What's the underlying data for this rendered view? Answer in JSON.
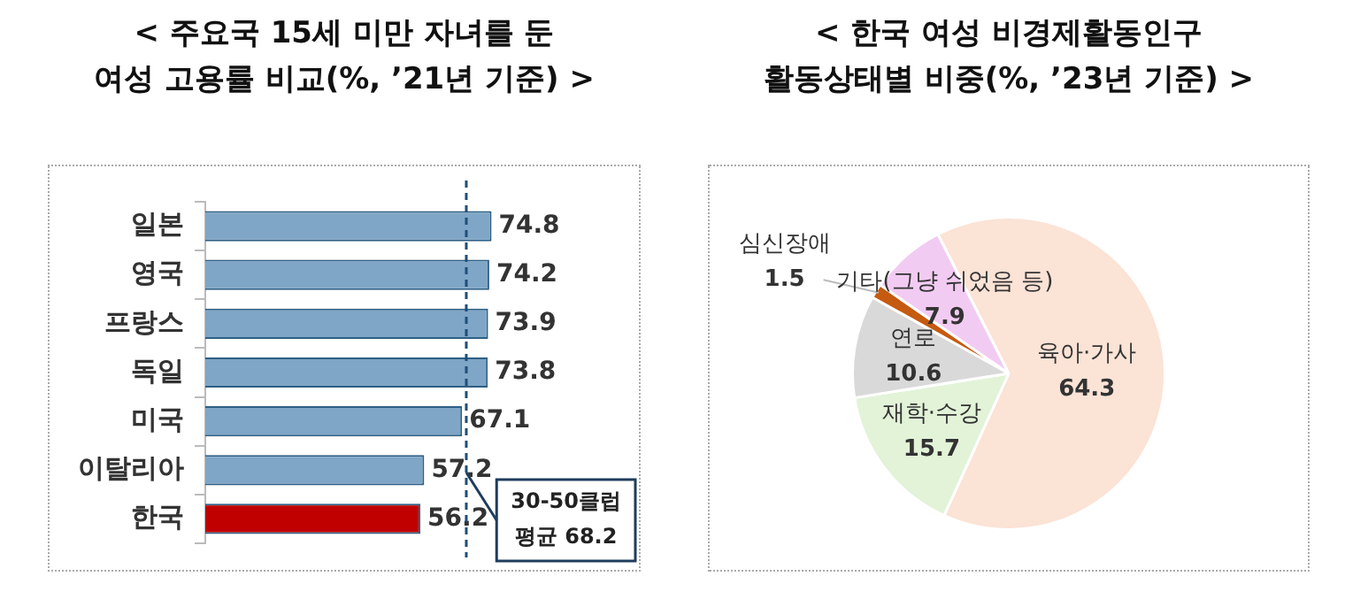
{
  "chart_data": [
    {
      "type": "bar",
      "orientation": "horizontal",
      "title": "< 주요국 15세 미만 자녀를 둔\n여성 고용률 비교(%, ’21년 기준) >",
      "categories": [
        "일본",
        "영국",
        "프랑스",
        "독일",
        "미국",
        "이탈리아",
        "한국"
      ],
      "values": [
        74.8,
        74.2,
        73.9,
        73.8,
        67.1,
        57.2,
        56.2
      ],
      "colors": [
        "#7fa6c6",
        "#7fa6c6",
        "#7fa6c6",
        "#7fa6c6",
        "#7fa6c6",
        "#7fa6c6",
        "#c00000"
      ],
      "tick_labels": "y",
      "grid": false,
      "legend": false,
      "data_labels": true,
      "ref_lines": [
        {
          "axis": "x",
          "value": 68.2,
          "label": "30-50클럽\n평균 68.2",
          "color": "#1f4e79",
          "line_style": "dashed"
        }
      ]
    },
    {
      "type": "pie",
      "title": "< 한국 여성 비경제활동인구\n활동상태별 비중(%, ’23년 기준) >",
      "categories": [
        "육아·가사",
        "재학·수강",
        "연로",
        "심신장애",
        "기타(그냥 쉬었음 등)"
      ],
      "values": [
        64.3,
        15.7,
        10.6,
        1.5,
        7.9
      ],
      "colors": [
        "#fbe3d6",
        "#e2f3d8",
        "#d9d9d9",
        "#c55a11",
        "#f2cbf2"
      ],
      "legend": false,
      "data_labels": true
    }
  ]
}
